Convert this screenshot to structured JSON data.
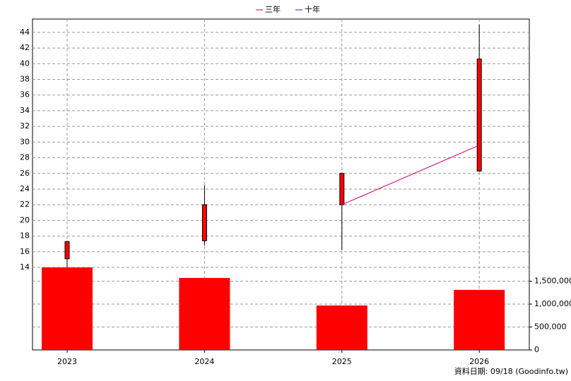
{
  "chart_data": {
    "type": "candlestick",
    "categories": [
      "2023",
      "2024",
      "2025",
      "2026"
    ],
    "open": [
      15.1,
      17.4,
      22,
      26.3
    ],
    "high": [
      17.4,
      24.5,
      26,
      45
    ],
    "low": [
      14,
      16.8,
      16.2,
      26.2
    ],
    "close": [
      17.3,
      22,
      26,
      40.6
    ],
    "volume": [
      1800000,
      1570000,
      970000,
      1310000
    ],
    "volume_color": "#ff0000",
    "candle_color": "#ff0000",
    "series": [
      {
        "name": "三年",
        "color": "#cc0066",
        "values": [
          null,
          null,
          22,
          29.6
        ]
      },
      {
        "name": "十年",
        "color": "#6600cc",
        "values": [
          null,
          null,
          null,
          null
        ]
      }
    ],
    "ylim": [
      14,
      45.7
    ],
    "yticks": [
      14,
      16,
      18,
      20,
      22,
      24,
      26,
      28,
      30,
      32,
      34,
      36,
      38,
      40,
      42,
      44
    ],
    "y2lim": [
      0,
      1800000
    ],
    "y2ticks": [
      0,
      {
        "value": 500000,
        "label": "500,000"
      },
      {
        "value": 1000000,
        "label": "1,000,000"
      },
      {
        "value": 1500000,
        "label": "1,500,000"
      }
    ],
    "grid": true,
    "footer": "資料日期: 09/18  (Goodinfo.tw)"
  }
}
